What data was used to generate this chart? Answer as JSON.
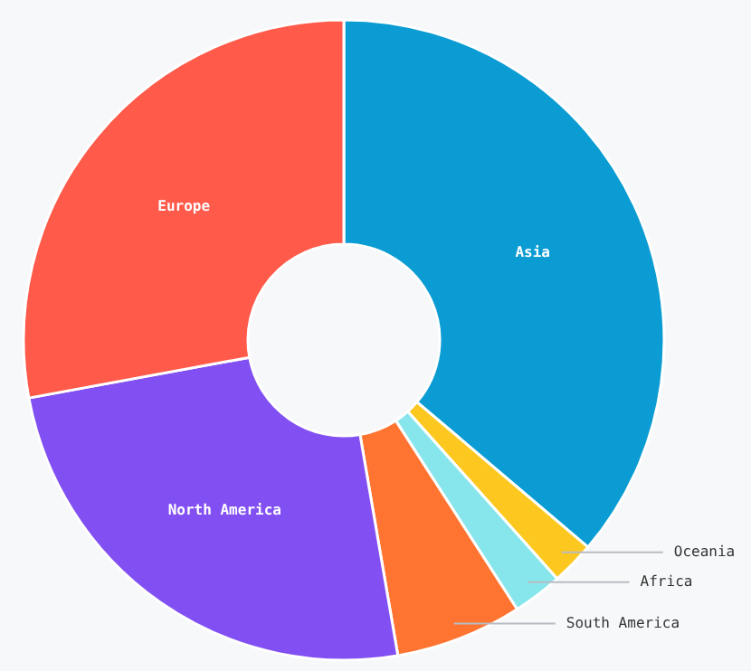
{
  "chart_data": {
    "type": "donut",
    "categories": [
      "Asia",
      "Oceania",
      "Africa",
      "South America",
      "North America",
      "Europe"
    ],
    "values": [
      36.2,
      2.2,
      2.5,
      6.4,
      24.8,
      27.9
    ],
    "colors": [
      "#0a9cd2",
      "#fcc820",
      "#86e6ec",
      "#ff7430",
      "#8250f2",
      "#ff5a4a"
    ]
  }
}
